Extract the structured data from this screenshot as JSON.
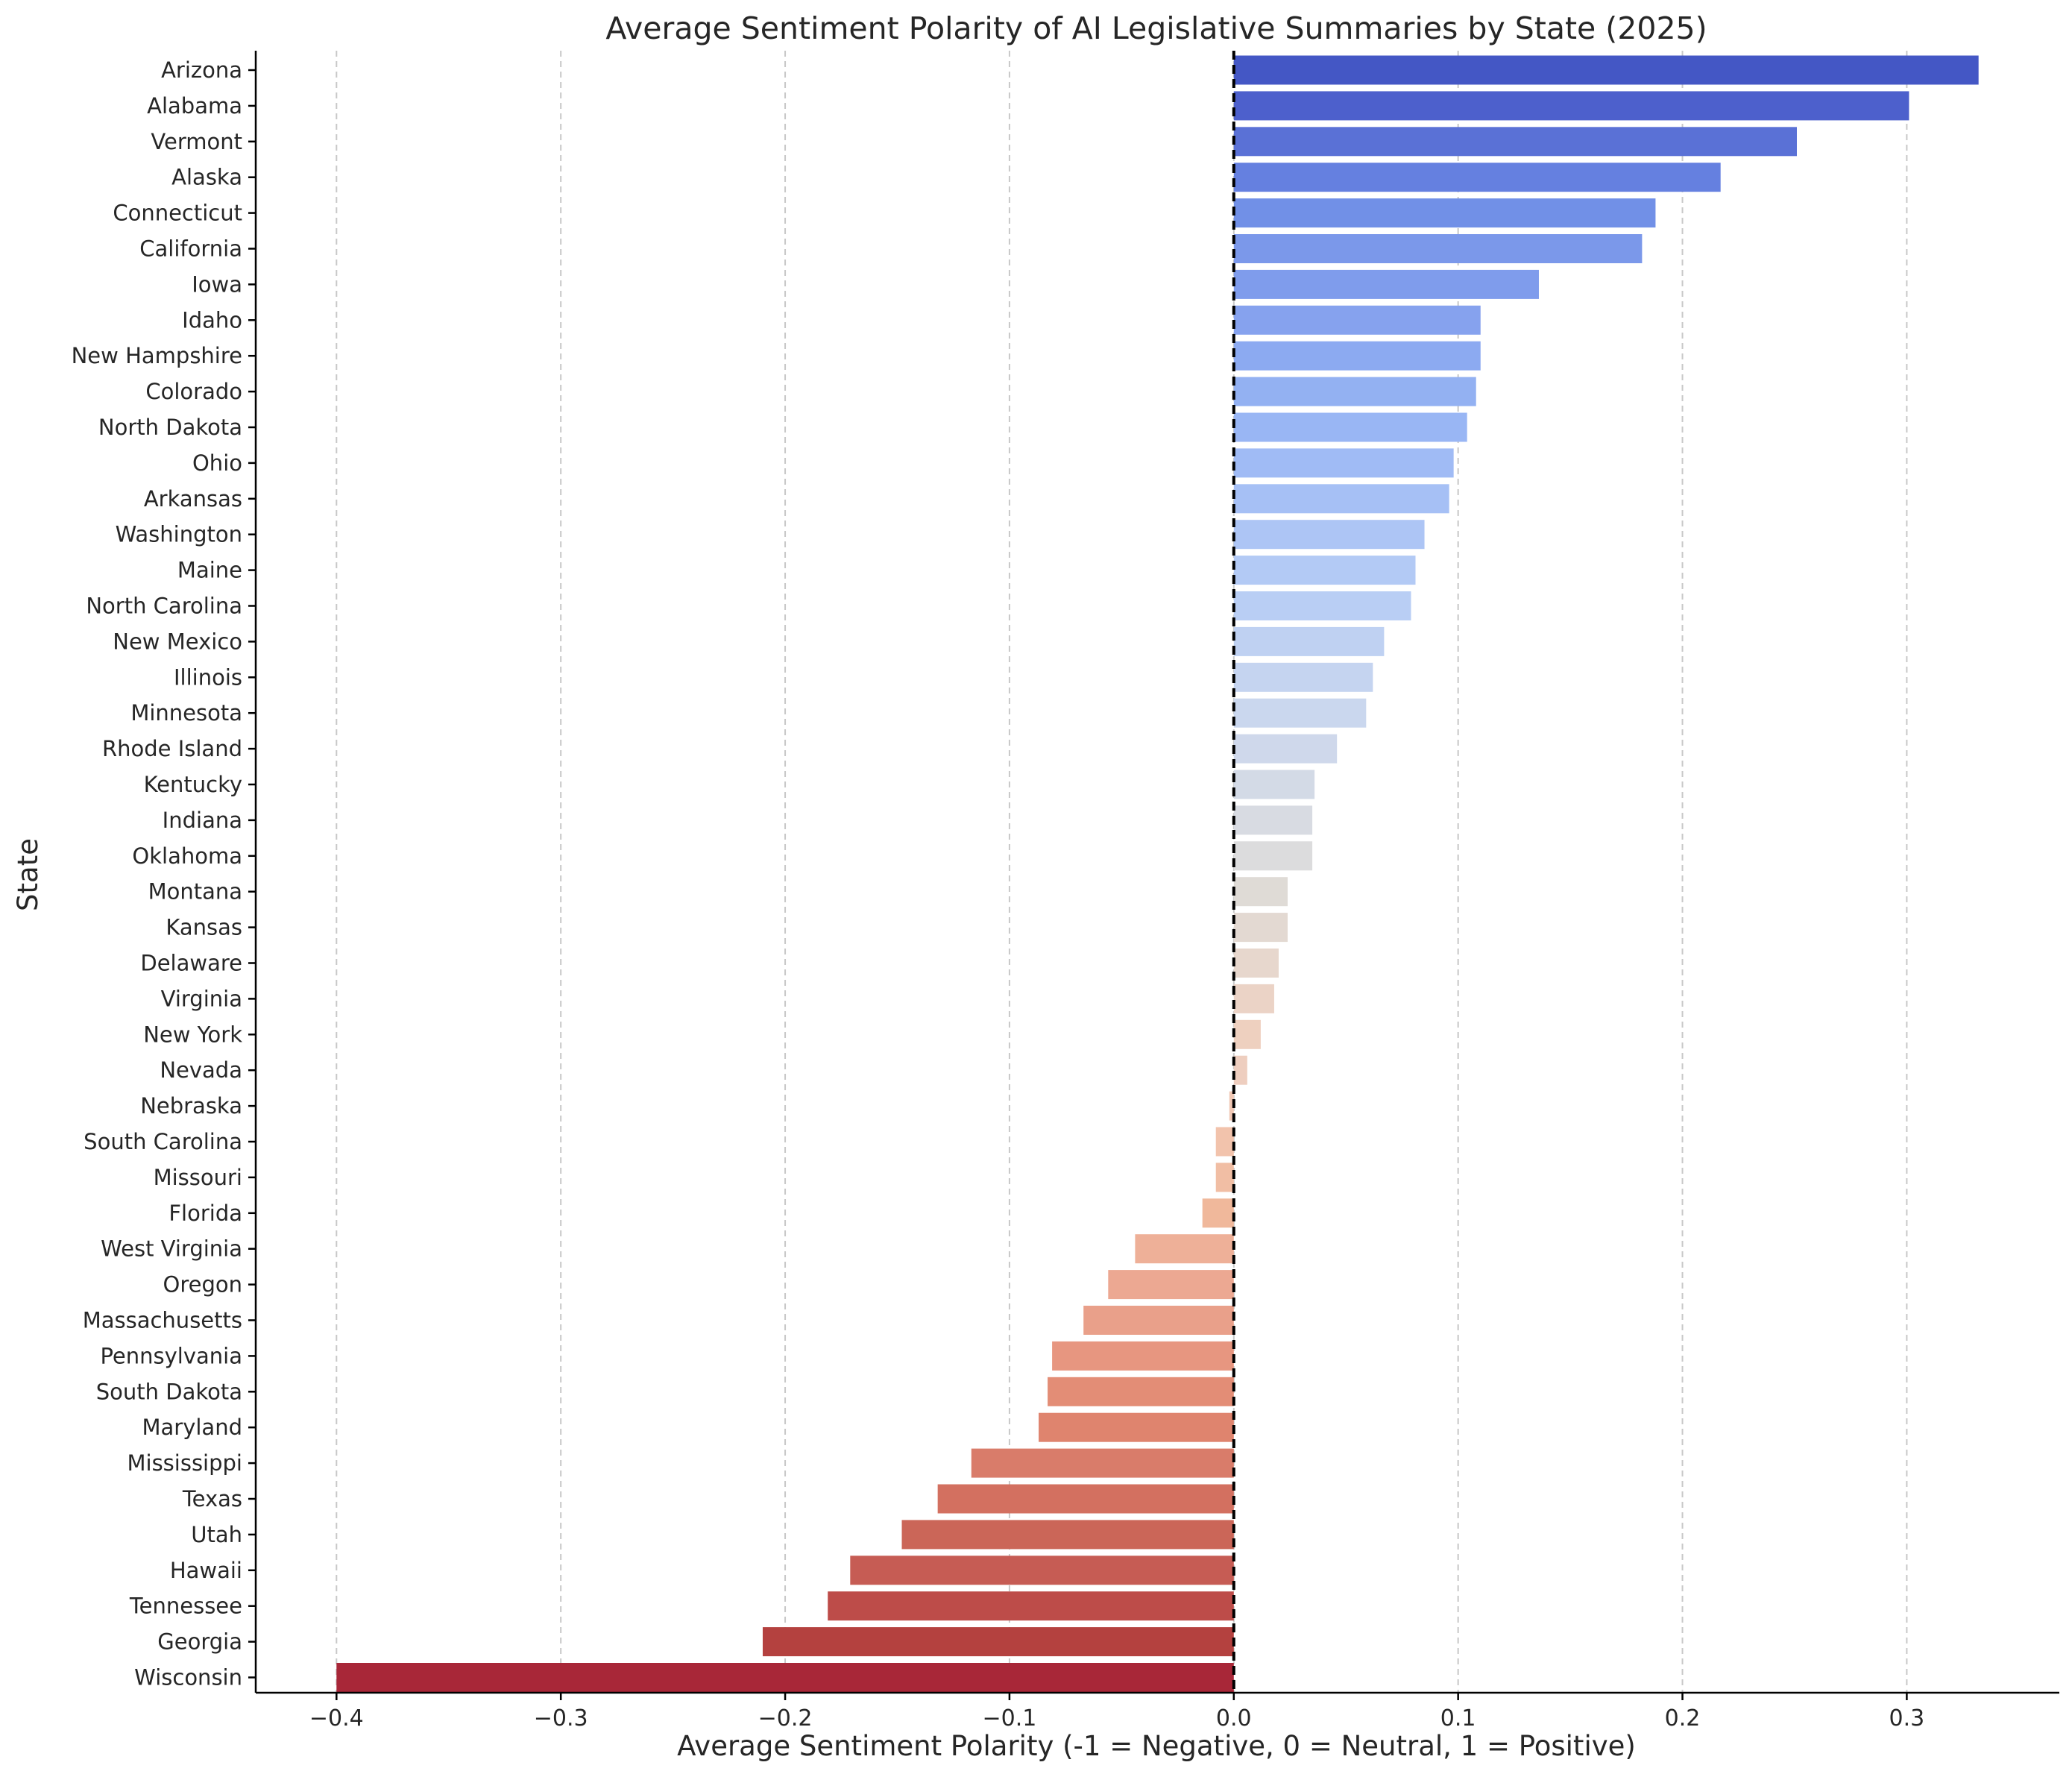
{
  "chart_data": {
    "type": "bar",
    "orientation": "horizontal",
    "title": "Average Sentiment Polarity of AI Legislative Summaries by State (2025)",
    "xlabel": "Average Sentiment Polarity (-1 = Negative, 0 = Neutral, 1 = Positive)",
    "ylabel": "State",
    "xlim": [
      -0.436,
      0.368
    ],
    "xticks": [
      -0.4,
      -0.3,
      -0.2,
      -0.1,
      0.0,
      0.1,
      0.2,
      0.3
    ],
    "xtick_labels": [
      "−0.4",
      "−0.3",
      "−0.2",
      "−0.1",
      "0.0",
      "0.1",
      "0.2",
      "0.3"
    ],
    "grid": "x-axis dashed",
    "reference_line": {
      "x": 0.0,
      "style": "dashed",
      "color": "#000000"
    },
    "colormap": "coolwarm",
    "categories": [
      "Arizona",
      "Alabama",
      "Vermont",
      "Alaska",
      "Connecticut",
      "California",
      "Iowa",
      "Idaho",
      "New Hampshire",
      "Colorado",
      "North Dakota",
      "Ohio",
      "Arkansas",
      "Washington",
      "Maine",
      "North Carolina",
      "New Mexico",
      "Illinois",
      "Minnesota",
      "Rhode Island",
      "Kentucky",
      "Indiana",
      "Oklahoma",
      "Montana",
      "Kansas",
      "Delaware",
      "Virginia",
      "New York",
      "Nevada",
      "Nebraska",
      "South Carolina",
      "Missouri",
      "Florida",
      "West Virginia",
      "Oregon",
      "Massachusetts",
      "Pennsylvania",
      "South Dakota",
      "Maryland",
      "Mississippi",
      "Texas",
      "Utah",
      "Hawaii",
      "Tennessee",
      "Georgia",
      "Wisconsin"
    ],
    "values": [
      0.332,
      0.301,
      0.251,
      0.217,
      0.188,
      0.182,
      0.136,
      0.11,
      0.11,
      0.108,
      0.104,
      0.098,
      0.096,
      0.085,
      0.081,
      0.079,
      0.067,
      0.062,
      0.059,
      0.046,
      0.036,
      0.035,
      0.035,
      0.024,
      0.024,
      0.02,
      0.018,
      0.012,
      0.006,
      -0.002,
      -0.008,
      -0.008,
      -0.014,
      -0.044,
      -0.056,
      -0.067,
      -0.081,
      -0.083,
      -0.087,
      -0.117,
      -0.132,
      -0.148,
      -0.171,
      -0.181,
      -0.21,
      -0.4
    ],
    "colors": [
      "#4457c5",
      "#4d60cc",
      "#5a71d6",
      "#6580e0",
      "#7190e7",
      "#7b98ea",
      "#7f9cec",
      "#86a2ee",
      "#8caaf1",
      "#93b1f2",
      "#99b6f4",
      "#a0bbf5",
      "#a6c0f5",
      "#adc5f5",
      "#b3caf5",
      "#b9cef4",
      "#bfd1f2",
      "#c5d4f0",
      "#cad7ee",
      "#cfd8eb",
      "#d3dae6",
      "#d8dbe2",
      "#dcdcdd",
      "#dfdbd6",
      "#e3d9d2",
      "#e7d7cd",
      "#ebd3c6",
      "#eed0bf",
      "#eecebf",
      "#f1c8b5",
      "#f2c3ac",
      "#f1bea4",
      "#f0b89b",
      "#eeb098",
      "#eca892",
      "#e9a08a",
      "#e79680",
      "#e38d76",
      "#df846e",
      "#d97c6a",
      "#d37060",
      "#cb6658",
      "#c65c54",
      "#bd4c49",
      "#b4413f",
      "#a82738"
    ]
  }
}
